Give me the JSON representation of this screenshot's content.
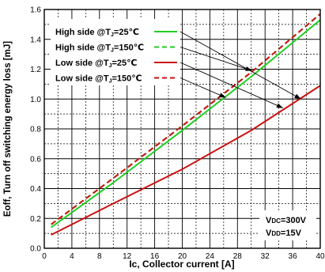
{
  "chart_data": {
    "type": "line",
    "title": "",
    "xlabel": "Ic, Collector current [A]",
    "ylabel": "Eoff, Turn off switching energy loss [mJ]",
    "xlim": [
      0,
      40
    ],
    "ylim": [
      0.0,
      1.6
    ],
    "x_ticks": [
      0,
      4,
      8,
      12,
      16,
      20,
      24,
      28,
      32,
      36,
      40
    ],
    "x_tick_labels": [
      "0",
      "4",
      "8",
      "12",
      "16",
      "20",
      "24",
      "28",
      "32",
      "36",
      "40"
    ],
    "y_ticks": [
      0.0,
      0.2,
      0.4,
      0.6,
      0.8,
      1.0,
      1.2,
      1.4,
      1.6
    ],
    "y_tick_labels": [
      "0.0",
      "0.2",
      "0.4",
      "0.6",
      "0.8",
      "1.0",
      "1.2",
      "1.4",
      "1.6"
    ],
    "grid": "dashed-minor",
    "legend_position": "top-left",
    "series": [
      {
        "name": "High side @TJ=25℃",
        "label_main": "High side @T",
        "label_sub": "J",
        "label_tail": "=25℃",
        "color": "#22cc22",
        "dash": "solid",
        "x": [
          1,
          10,
          20,
          30,
          40
        ],
        "y": [
          0.14,
          0.44,
          0.79,
          1.15,
          1.53
        ]
      },
      {
        "name": "High side @TJ=150℃",
        "label_main": "High side @T",
        "label_sub": "J",
        "label_tail": "=150℃",
        "color": "#22cc22",
        "dash": "dashed",
        "x": [
          1,
          10,
          20,
          30,
          40
        ],
        "y": [
          0.16,
          0.47,
          0.82,
          1.18,
          1.57
        ]
      },
      {
        "name": "Low side @TJ=25℃",
        "label_main": "Low side @T",
        "label_sub": "J",
        "label_tail": "=25℃",
        "color": "#cc1111",
        "dash": "solid",
        "x": [
          1,
          10,
          20,
          30,
          40
        ],
        "y": [
          0.09,
          0.3,
          0.53,
          0.79,
          1.09
        ]
      },
      {
        "name": "Low side @TJ=150℃",
        "label_main": "Low side @T",
        "label_sub": "J",
        "label_tail": "=150℃",
        "color": "#cc1111",
        "dash": "dashed",
        "x": [
          1,
          10,
          20,
          30,
          40
        ],
        "y": [
          0.16,
          0.47,
          0.82,
          1.18,
          1.57
        ]
      }
    ],
    "annotations": {
      "vdc_main": "V",
      "vdc_sub": "DC",
      "vdc_tail": "=300V",
      "vdd_main": "V",
      "vdd_sub": "DD",
      "vdd_tail": "=15V"
    },
    "arrows": [
      {
        "from_series": 0,
        "to_x": 37.2,
        "to_y": 1.0
      },
      {
        "from_series": 1,
        "to_x": 30.1,
        "to_y": 1.19
      },
      {
        "from_series": 2,
        "to_x": 34.6,
        "to_y": 0.94
      },
      {
        "from_series": 3,
        "to_x": 26.3,
        "to_y": 1.01
      }
    ]
  }
}
